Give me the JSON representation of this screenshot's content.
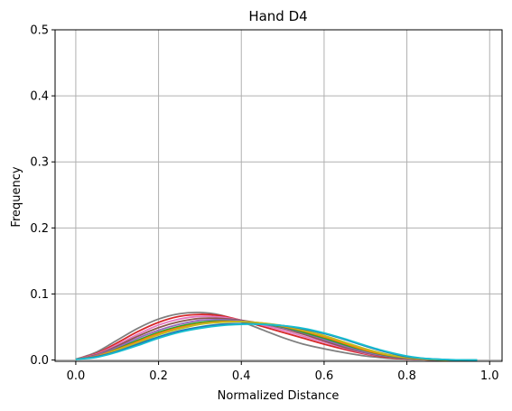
{
  "chart_data": {
    "type": "line",
    "title": "Hand D4",
    "xlabel": "Normalized Distance",
    "ylabel": "Frequency",
    "xlim": [
      -0.05,
      1.03
    ],
    "ylim": [
      -0.002,
      0.5
    ],
    "x_ticks": [
      "0.0",
      "0.2",
      "0.4",
      "0.6",
      "0.8",
      "1.0"
    ],
    "y_ticks": [
      "0.0",
      "0.1",
      "0.2",
      "0.3",
      "0.4",
      "0.5"
    ],
    "grid": true,
    "legend": "none",
    "x": [
      0.0,
      0.05,
      0.1,
      0.15,
      0.2,
      0.25,
      0.3,
      0.35,
      0.4,
      0.45,
      0.5,
      0.55,
      0.6,
      0.65,
      0.7,
      0.75,
      0.8,
      0.85,
      0.9,
      0.95,
      0.97
    ],
    "series": [
      {
        "color": "#7f7f7f",
        "values": [
          0.001,
          0.012,
          0.03,
          0.048,
          0.062,
          0.07,
          0.072,
          0.068,
          0.058,
          0.046,
          0.034,
          0.024,
          0.017,
          0.011,
          0.006,
          0.003,
          0.0015,
          0.0005,
          0.0,
          0.0,
          0.0
        ]
      },
      {
        "color": "#d62728",
        "values": [
          0.001,
          0.01,
          0.026,
          0.043,
          0.057,
          0.066,
          0.069,
          0.067,
          0.06,
          0.051,
          0.042,
          0.033,
          0.024,
          0.016,
          0.009,
          0.004,
          0.0015,
          0.0005,
          0.0,
          0.0,
          0.0
        ]
      },
      {
        "color": "#e377c2",
        "values": [
          0.001,
          0.009,
          0.023,
          0.039,
          0.053,
          0.062,
          0.066,
          0.065,
          0.06,
          0.053,
          0.045,
          0.036,
          0.027,
          0.018,
          0.01,
          0.005,
          0.002,
          0.0005,
          0.0,
          0.0,
          0.0
        ]
      },
      {
        "color": "#8c564b",
        "values": [
          0.001,
          0.008,
          0.021,
          0.036,
          0.049,
          0.058,
          0.063,
          0.063,
          0.06,
          0.055,
          0.048,
          0.039,
          0.029,
          0.019,
          0.011,
          0.005,
          0.002,
          0.0005,
          0.0,
          0.0,
          0.0
        ]
      },
      {
        "color": "#9467bd",
        "values": [
          0.001,
          0.007,
          0.019,
          0.033,
          0.045,
          0.054,
          0.06,
          0.061,
          0.059,
          0.055,
          0.049,
          0.041,
          0.031,
          0.021,
          0.012,
          0.006,
          0.0025,
          0.0008,
          0.0,
          0.0,
          0.0
        ]
      },
      {
        "color": "#2ca02c",
        "values": [
          0.001,
          0.006,
          0.017,
          0.03,
          0.042,
          0.051,
          0.057,
          0.059,
          0.058,
          0.055,
          0.05,
          0.042,
          0.033,
          0.023,
          0.014,
          0.007,
          0.003,
          0.001,
          0.0,
          0.0,
          0.0
        ]
      },
      {
        "color": "#ff7f0e",
        "values": [
          0.001,
          0.006,
          0.016,
          0.028,
          0.04,
          0.049,
          0.055,
          0.058,
          0.058,
          0.056,
          0.051,
          0.044,
          0.035,
          0.025,
          0.015,
          0.008,
          0.0035,
          0.0012,
          0.0,
          0.0,
          0.0
        ]
      },
      {
        "color": "#bcbd22",
        "values": [
          0.001,
          0.005,
          0.015,
          0.026,
          0.038,
          0.047,
          0.054,
          0.057,
          0.058,
          0.056,
          0.052,
          0.045,
          0.037,
          0.027,
          0.017,
          0.009,
          0.004,
          0.0015,
          0.0,
          0.0,
          0.0
        ]
      },
      {
        "color": "#1f77b4",
        "values": [
          0.001,
          0.005,
          0.013,
          0.024,
          0.035,
          0.044,
          0.05,
          0.054,
          0.055,
          0.054,
          0.052,
          0.047,
          0.04,
          0.031,
          0.021,
          0.012,
          0.005,
          0.002,
          0.0005,
          0.0,
          0.0
        ]
      },
      {
        "color": "#17becf",
        "values": [
          0.001,
          0.004,
          0.012,
          0.022,
          0.033,
          0.042,
          0.048,
          0.052,
          0.054,
          0.054,
          0.052,
          0.048,
          0.041,
          0.032,
          0.022,
          0.013,
          0.006,
          0.002,
          0.0005,
          0.0,
          0.0
        ]
      }
    ]
  }
}
